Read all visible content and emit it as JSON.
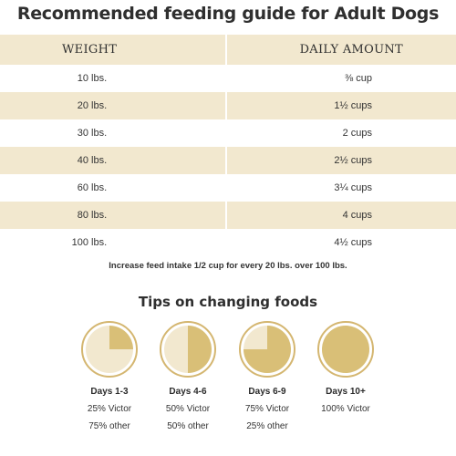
{
  "title": "Recommended feeding guide for Adult Dogs",
  "table": {
    "headers": {
      "weight": "WEIGHT",
      "amount": "DAILY AMOUNT"
    },
    "rows": [
      {
        "weight": "10 lbs.",
        "amount": "⅜ cup"
      },
      {
        "weight": "20 lbs.",
        "amount": "1½ cups"
      },
      {
        "weight": "30 lbs.",
        "amount": "2 cups"
      },
      {
        "weight": "40 lbs.",
        "amount": "2½ cups"
      },
      {
        "weight": "60 lbs.",
        "amount": "3¼ cups"
      },
      {
        "weight": "80 lbs.",
        "amount": "4 cups"
      },
      {
        "weight": "100 lbs.",
        "amount": "4½ cups"
      }
    ],
    "note": "Increase feed intake 1/2 cup for every 20 lbs. over 100 lbs."
  },
  "tips": {
    "title": "Tips on changing foods",
    "items": [
      {
        "days": "Days 1-3",
        "victor": "25% Victor",
        "other": "75% other",
        "victor_fraction": 0.25
      },
      {
        "days": "Days 4-6",
        "victor": "50% Victor",
        "other": "50% other",
        "victor_fraction": 0.5
      },
      {
        "days": "Days 6-9",
        "victor": "75% Victor",
        "other": "25% other",
        "victor_fraction": 0.75
      },
      {
        "days": "Days 10+",
        "victor": "100% Victor",
        "other": "",
        "victor_fraction": 1.0
      }
    ]
  },
  "colors": {
    "victor_fill": "#d9bf77",
    "other_fill": "#f2e8cf",
    "ring": "#d4b670",
    "row_shade": "#f2e8cf"
  }
}
